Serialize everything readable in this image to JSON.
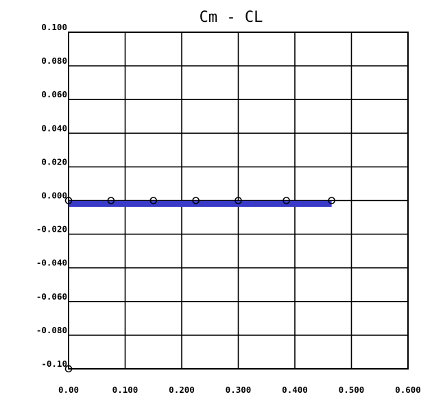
{
  "chart_data": {
    "type": "line",
    "title": "Cm - CL",
    "xlabel": "",
    "ylabel": "",
    "xlim": [
      0,
      0.6
    ],
    "ylim": [
      -0.1,
      0.1
    ],
    "grid": true,
    "legend": "none",
    "x_tick_labels": [
      "0.00",
      "0.100",
      "0.200",
      "0.300",
      "0.400",
      "0.500",
      "0.600"
    ],
    "x_ticks": [
      0,
      0.1,
      0.2,
      0.3,
      0.4,
      0.5,
      0.6
    ],
    "y_tick_labels": [
      "0.100",
      "0.080",
      "0.060",
      "0.040",
      "0.020",
      "0.000",
      "-0.020",
      "-0.040",
      "-0.060",
      "-0.080",
      "-0.10"
    ],
    "y_ticks": [
      0.1,
      0.08,
      0.06,
      0.04,
      0.02,
      0,
      -0.02,
      -0.04,
      -0.06,
      -0.08,
      -0.1
    ],
    "series": [
      {
        "name": "",
        "color": "#3a3ac8",
        "x": [
          0.0,
          0.08,
          0.155,
          0.23,
          0.305,
          0.385,
          0.465
        ],
        "y": [
          -0.002,
          -0.002,
          -0.002,
          -0.002,
          -0.002,
          -0.002,
          -0.002
        ]
      }
    ],
    "markers": [
      {
        "x": 0.0,
        "y": 0.0
      },
      {
        "x": 0.075,
        "y": 0.0
      },
      {
        "x": 0.15,
        "y": 0.0
      },
      {
        "x": 0.225,
        "y": 0.0
      },
      {
        "x": 0.3,
        "y": 0.0
      },
      {
        "x": 0.385,
        "y": 0.0
      },
      {
        "x": 0.465,
        "y": 0.0
      },
      {
        "x": 0.0,
        "y": -0.1
      }
    ]
  }
}
